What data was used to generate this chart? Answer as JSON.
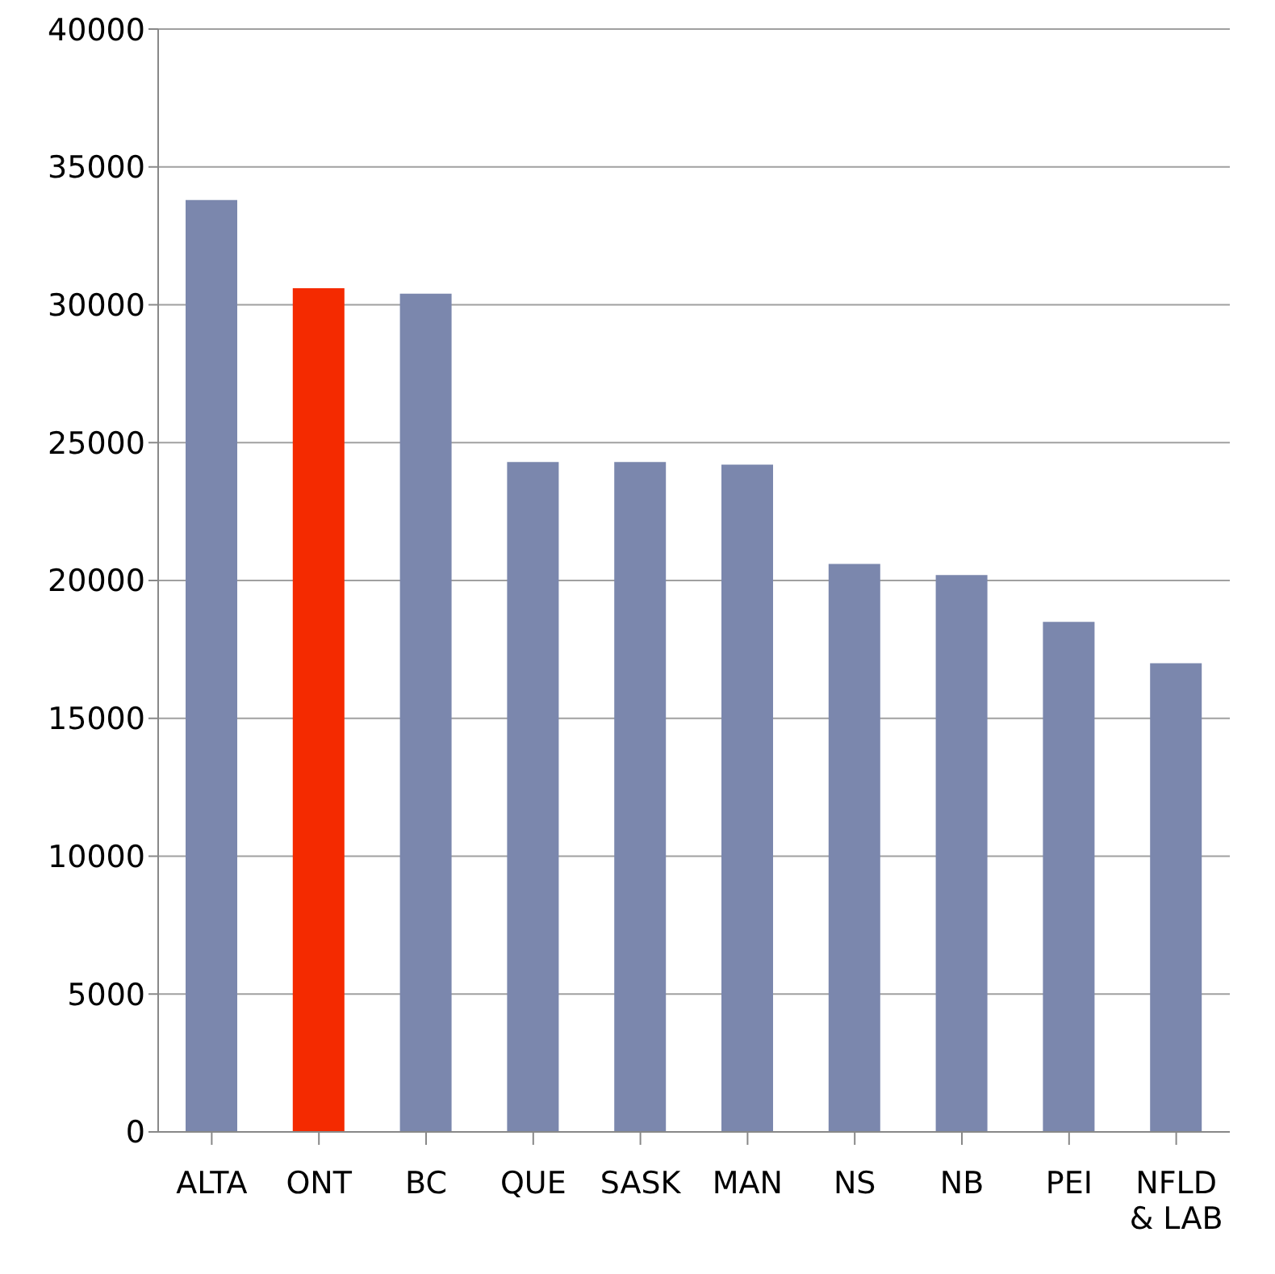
{
  "chart_data": {
    "type": "bar",
    "categories": [
      "ALTA",
      "ONT",
      "BC",
      "QUE",
      "SASK",
      "MAN",
      "NS",
      "NB",
      "PEI",
      "NFLD & LAB"
    ],
    "values": [
      33800,
      30600,
      30400,
      24300,
      24300,
      24200,
      20600,
      20200,
      18500,
      17000
    ],
    "colors": [
      "#7b87ad",
      "#f42a00",
      "#7b87ad",
      "#7b87ad",
      "#7b87ad",
      "#7b87ad",
      "#7b87ad",
      "#7b87ad",
      "#7b87ad",
      "#7b87ad"
    ],
    "ylim": [
      0,
      40000
    ],
    "yticks": [
      0,
      5000,
      10000,
      15000,
      20000,
      25000,
      30000,
      35000,
      40000
    ],
    "grid": "y"
  }
}
